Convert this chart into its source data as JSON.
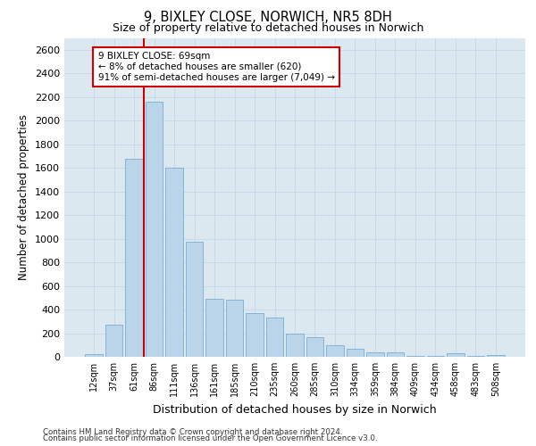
{
  "title_line1": "9, BIXLEY CLOSE, NORWICH, NR5 8DH",
  "title_line2": "Size of property relative to detached houses in Norwich",
  "xlabel": "Distribution of detached houses by size in Norwich",
  "ylabel": "Number of detached properties",
  "categories": [
    "12sqm",
    "37sqm",
    "61sqm",
    "86sqm",
    "111sqm",
    "136sqm",
    "161sqm",
    "185sqm",
    "210sqm",
    "235sqm",
    "260sqm",
    "285sqm",
    "310sqm",
    "334sqm",
    "359sqm",
    "384sqm",
    "409sqm",
    "434sqm",
    "458sqm",
    "483sqm",
    "508sqm"
  ],
  "values": [
    20,
    270,
    1680,
    2160,
    1600,
    975,
    490,
    480,
    370,
    330,
    200,
    165,
    95,
    70,
    40,
    35,
    10,
    10,
    30,
    10,
    15
  ],
  "bar_color": "#bad4ea",
  "bar_edge_color": "#7aaed4",
  "vline_color": "#cc0000",
  "vline_x_pos": 2.5,
  "annotation_text": "9 BIXLEY CLOSE: 69sqm\n← 8% of detached houses are smaller (620)\n91% of semi-detached houses are larger (7,049) →",
  "annotation_box_facecolor": "#ffffff",
  "annotation_box_edgecolor": "#cc0000",
  "ylim": [
    0,
    2700
  ],
  "yticks": [
    0,
    200,
    400,
    600,
    800,
    1000,
    1200,
    1400,
    1600,
    1800,
    2000,
    2200,
    2400,
    2600
  ],
  "grid_color": "#c8d8e8",
  "bg_color": "#dce8f0",
  "footer_line1": "Contains HM Land Registry data © Crown copyright and database right 2024.",
  "footer_line2": "Contains public sector information licensed under the Open Government Licence v3.0."
}
